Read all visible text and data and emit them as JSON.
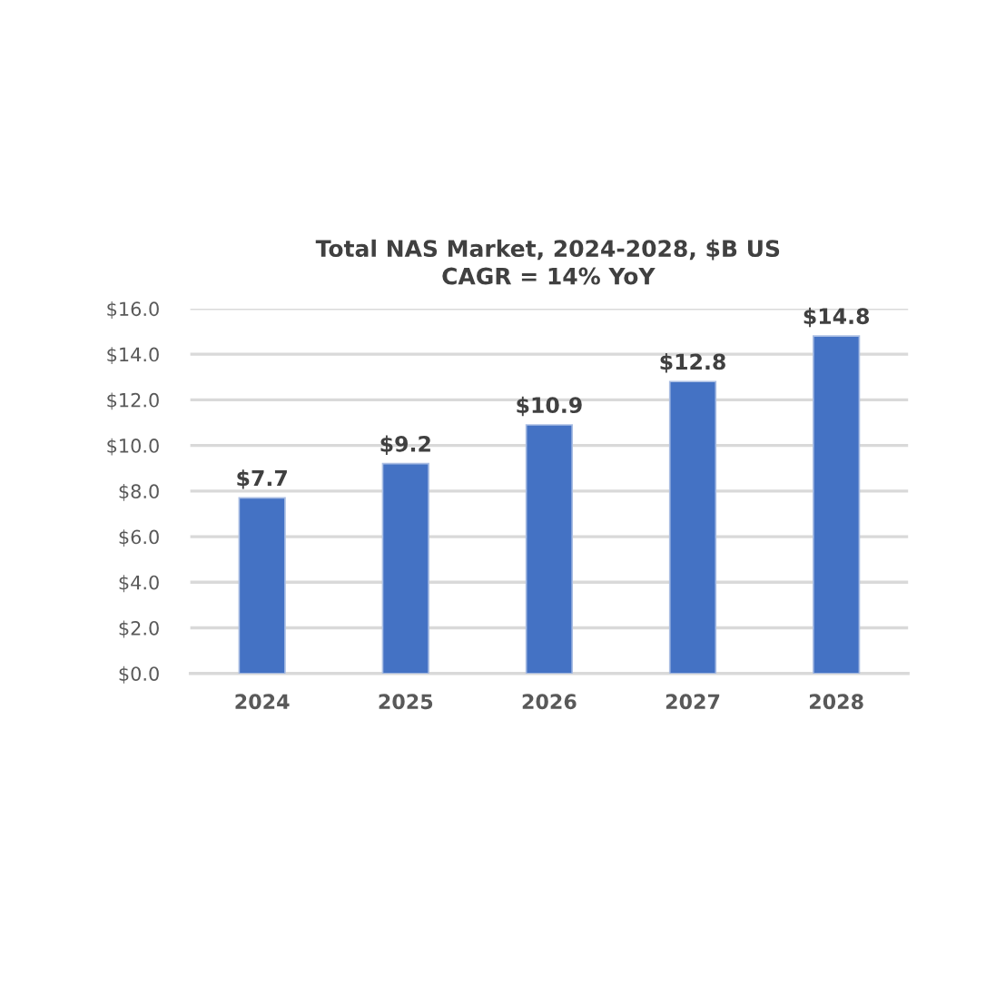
{
  "chart_data": {
    "type": "bar",
    "title": "Total NAS Market, 2024-2028, $B US",
    "subtitle": "CAGR = 14% YoY",
    "categories": [
      "2024",
      "2025",
      "2026",
      "2027",
      "2028"
    ],
    "values": [
      7.7,
      9.2,
      10.9,
      12.8,
      14.8
    ],
    "value_labels": [
      "$7.7",
      "$9.2",
      "$10.9",
      "$12.8",
      "$14.8"
    ],
    "color": "#4472c4",
    "ylim": [
      0,
      16
    ],
    "yticks": [
      {
        "value": 0,
        "label": "$0.0"
      },
      {
        "value": 2,
        "label": "$2.0"
      },
      {
        "value": 4,
        "label": "$4.0"
      },
      {
        "value": 6,
        "label": "$6.0"
      },
      {
        "value": 8,
        "label": "$8.0"
      },
      {
        "value": 10,
        "label": "$10.0"
      },
      {
        "value": 12,
        "label": "$12.0"
      },
      {
        "value": 14,
        "label": "$14.0"
      },
      {
        "value": 16,
        "label": "$16.0"
      }
    ],
    "grid": "y"
  }
}
